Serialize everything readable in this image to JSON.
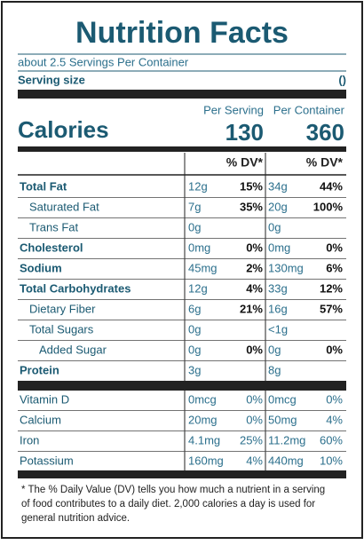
{
  "header": {
    "title": "Nutrition Facts",
    "servings": "about 2.5 Servings Per Container",
    "serving_size_label": "Serving size",
    "serving_size_value": "()"
  },
  "calories": {
    "label": "Calories",
    "per_serving_label": "Per Serving",
    "per_container_label": "Per Container",
    "per_serving": "130",
    "per_container": "360"
  },
  "dv_headers": [
    "% DV*",
    "% DV*"
  ],
  "nutrients": [
    {
      "label": "Total Fat",
      "bold": true,
      "level": 0,
      "serving": "12g",
      "serving_dv": "15%",
      "container": "34g",
      "container_dv": "44%"
    },
    {
      "label": "Saturated Fat",
      "bold": false,
      "level": 1,
      "serving": "7g",
      "serving_dv": "35%",
      "container": "20g",
      "container_dv": "100%"
    },
    {
      "label": "Trans Fat",
      "bold": false,
      "level": 1,
      "serving": "0g",
      "container": "0g"
    },
    {
      "label": "Cholesterol",
      "bold": true,
      "level": 0,
      "serving": "0mg",
      "serving_dv": "0%",
      "container": "0mg",
      "container_dv": "0%"
    },
    {
      "label": "Sodium",
      "bold": true,
      "level": 0,
      "serving": "45mg",
      "serving_dv": "2%",
      "container": "130mg",
      "container_dv": "6%"
    },
    {
      "label": "Total Carbohydrates",
      "bold": true,
      "level": 0,
      "serving": "12g",
      "serving_dv": "4%",
      "container": "33g",
      "container_dv": "12%"
    },
    {
      "label": "Dietary Fiber",
      "bold": false,
      "level": 1,
      "serving": "6g",
      "serving_dv": "21%",
      "container": "16g",
      "container_dv": "57%"
    },
    {
      "label": "Total Sugars",
      "bold": false,
      "level": 1,
      "serving": "0g",
      "container": "<1g"
    },
    {
      "label": "Added Sugar",
      "bold": false,
      "level": 2,
      "serving": "0g",
      "serving_dv": "0%",
      "container": "0g",
      "container_dv": "0%"
    },
    {
      "label": "Protein",
      "bold": true,
      "level": 0,
      "serving": "3g",
      "container": "8g"
    }
  ],
  "vitamins": [
    {
      "label": "Vitamin D",
      "serving": "0mcg",
      "serving_dv": "0%",
      "container": "0mcg",
      "container_dv": "0%"
    },
    {
      "label": "Calcium",
      "serving": "20mg",
      "serving_dv": "0%",
      "container": "50mg",
      "container_dv": "4%"
    },
    {
      "label": "Iron",
      "serving": "4.1mg",
      "serving_dv": "25%",
      "container": "11.2mg",
      "container_dv": "60%"
    },
    {
      "label": "Potassium",
      "serving": "160mg",
      "serving_dv": "4%",
      "container": "440mg",
      "container_dv": "10%"
    }
  ],
  "footnote": [
    "* The % Daily Value (DV) tells you how much a nutrient in a serving",
    "of food contributes to a daily diet. 2,000 calories a day is used for",
    "general nutrition advice."
  ]
}
